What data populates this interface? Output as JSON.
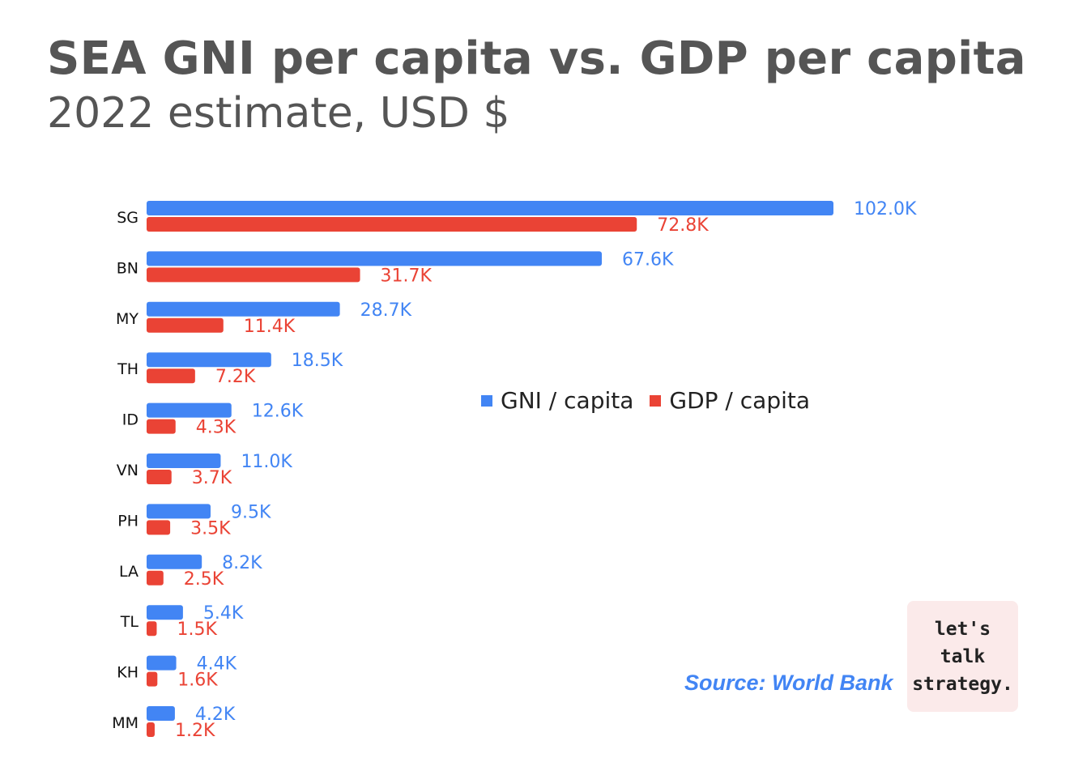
{
  "header": {
    "title": "SEA GNI per capita vs. GDP per capita",
    "subtitle": "2022 estimate, USD $"
  },
  "colors": {
    "gni": "#4285f4",
    "gdp": "#ea4335",
    "text": "#555555"
  },
  "legend": {
    "gni_label": "GNI / capita",
    "gdp_label": "GDP / capita"
  },
  "footer": {
    "source": "Source: World Bank",
    "badge_lines": [
      "let's",
      "talk",
      "strategy."
    ]
  },
  "chart_data": {
    "type": "bar",
    "orientation": "horizontal",
    "title": "SEA GNI per capita vs. GDP per capita",
    "subtitle": "2022 estimate, USD $",
    "categories": [
      "SG",
      "BN",
      "MY",
      "TH",
      "ID",
      "VN",
      "PH",
      "LA",
      "TL",
      "KH",
      "MM"
    ],
    "series": [
      {
        "name": "GNI / capita",
        "values": [
          102.0,
          67.6,
          28.7,
          18.5,
          12.6,
          11.0,
          9.5,
          8.2,
          5.4,
          4.4,
          4.2
        ],
        "labels": [
          "102.0K",
          "67.6K",
          "28.7K",
          "18.5K",
          "12.6K",
          "11.0K",
          "9.5K",
          "8.2K",
          "5.4K",
          "4.4K",
          "4.2K"
        ]
      },
      {
        "name": "GDP / capita",
        "values": [
          72.8,
          31.7,
          11.4,
          7.2,
          4.3,
          3.7,
          3.5,
          2.5,
          1.5,
          1.6,
          1.2
        ],
        "labels": [
          "72.8K",
          "31.7K",
          "11.4K",
          "7.2K",
          "4.3K",
          "3.7K",
          "3.5K",
          "2.5K",
          "1.5K",
          "1.6K",
          "1.2K"
        ]
      }
    ],
    "units": "thousand USD",
    "xlim": [
      0,
      102
    ],
    "grid": false,
    "legend_position": "center-right"
  }
}
